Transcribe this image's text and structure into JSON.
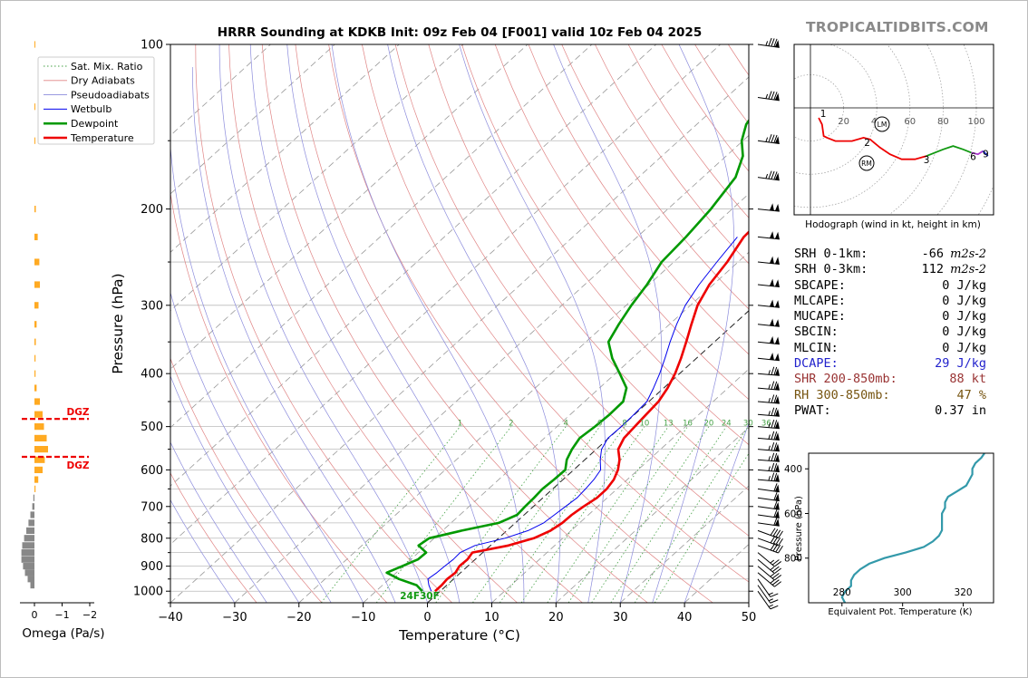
{
  "title": "HRRR Sounding at KDKB Init: 09z Feb 04 [F001] valid 10z Feb 04 2025",
  "brand": "TROPICALTIDBITS.COM",
  "chart_data": [
    {
      "type": "line",
      "name": "skew-t",
      "xlabel": "Temperature (°C)",
      "ylabel": "Pressure (hPa)",
      "xlim": [
        -40,
        50
      ],
      "ylim": [
        1050,
        100
      ],
      "y_scale": "log",
      "x_ticks": [
        -40,
        -30,
        -20,
        -10,
        0,
        10,
        20,
        30,
        40,
        50
      ],
      "x_tick_labels": [
        "−40",
        "−30",
        "−20",
        "−10",
        "0",
        "10",
        "20",
        "30",
        "40",
        "50"
      ],
      "y_ticks": [
        100,
        200,
        300,
        400,
        500,
        600,
        700,
        800,
        900,
        1000
      ],
      "legend_position": "top-left",
      "legend": [
        "Sat. Mix. Ratio",
        "Dry Adiabats",
        "Pseudoadiabats",
        "Wetbulb",
        "Dewpoint",
        "Temperature"
      ],
      "colors": {
        "temperature": "#ee0000",
        "dewpoint": "#009900",
        "wetbulb": "#0000ee",
        "dry_adiabat": "#e08585",
        "pseudoadiabat": "#8c8cdc",
        "mixing_ratio": "#44a044",
        "isotherm": "#000000"
      },
      "mixing_ratio_labels": [
        "1",
        "2",
        "4",
        "6",
        "8",
        "10",
        "13",
        "16",
        "20",
        "24",
        "30",
        "36"
      ],
      "surface_annotation": "24F30F",
      "series": [
        {
          "name": "Temperature",
          "points": [
            [
              1000,
              -0.8
            ],
            [
              975,
              -0.8
            ],
            [
              950,
              -1.0
            ],
            [
              925,
              -0.8
            ],
            [
              900,
              -1.3
            ],
            [
              875,
              -1.2
            ],
            [
              850,
              -1.6
            ],
            [
              825,
              2.8
            ],
            [
              800,
              5.5
            ],
            [
              775,
              6.8
            ],
            [
              750,
              7.3
            ],
            [
              725,
              7.4
            ],
            [
              700,
              7.8
            ],
            [
              675,
              8.4
            ],
            [
              650,
              8.4
            ],
            [
              625,
              7.9
            ],
            [
              600,
              6.9
            ],
            [
              575,
              5.4
            ],
            [
              550,
              3.4
            ],
            [
              525,
              2.4
            ],
            [
              500,
              2.1
            ],
            [
              475,
              1.8
            ],
            [
              450,
              1.5
            ],
            [
              425,
              0.6
            ],
            [
              400,
              -0.7
            ],
            [
              375,
              -2.4
            ],
            [
              350,
              -4.4
            ],
            [
              325,
              -6.6
            ],
            [
              300,
              -8.9
            ],
            [
              275,
              -10.6
            ],
            [
              250,
              -11.7
            ],
            [
              225,
              -13.4
            ],
            [
              200,
              -13.8
            ],
            [
              190,
              -12.4
            ],
            [
              175,
              -10.4
            ],
            [
              160,
              -8.0
            ],
            [
              150,
              -6.0
            ],
            [
              140,
              -5.0
            ],
            [
              130,
              -3.8
            ],
            [
              125,
              -3.2
            ],
            [
              110,
              -1.0
            ],
            [
              100,
              1.6
            ]
          ]
        },
        {
          "name": "Dewpoint",
          "points": [
            [
              1000,
              -2.8
            ],
            [
              975,
              -4.7
            ],
            [
              950,
              -8.5
            ],
            [
              925,
              -11.5
            ],
            [
              900,
              -10.2
            ],
            [
              875,
              -8.9
            ],
            [
              850,
              -8.8
            ],
            [
              825,
              -11.2
            ],
            [
              800,
              -10.8
            ],
            [
              775,
              -7.0
            ],
            [
              750,
              -2.6
            ],
            [
              725,
              -1.1
            ],
            [
              700,
              -1.3
            ],
            [
              675,
              -1.4
            ],
            [
              650,
              -1.6
            ],
            [
              625,
              -1.4
            ],
            [
              600,
              -1.3
            ],
            [
              575,
              -2.8
            ],
            [
              550,
              -3.8
            ],
            [
              525,
              -4.5
            ],
            [
              500,
              -4.1
            ],
            [
              475,
              -3.9
            ],
            [
              450,
              -4.0
            ],
            [
              425,
              -5.8
            ],
            [
              400,
              -9.3
            ],
            [
              375,
              -13.1
            ],
            [
              350,
              -16.5
            ],
            [
              325,
              -17.9
            ],
            [
              300,
              -19.2
            ],
            [
              275,
              -20.3
            ],
            [
              250,
              -21.9
            ],
            [
              225,
              -22.4
            ],
            [
              200,
              -23.3
            ],
            [
              175,
              -24.9
            ],
            [
              160,
              -27.4
            ],
            [
              150,
              -30.2
            ],
            [
              140,
              -32.3
            ],
            [
              130,
              -33.4
            ],
            [
              125,
              -32.9
            ],
            [
              110,
              -29.4
            ],
            [
              100,
              -24.6
            ]
          ]
        },
        {
          "name": "Wetbulb",
          "points": [
            [
              1000,
              -1.4
            ],
            [
              975,
              -2.8
            ],
            [
              950,
              -4.0
            ],
            [
              925,
              -3.7
            ],
            [
              900,
              -3.6
            ],
            [
              875,
              -3.4
            ],
            [
              850,
              -3.5
            ],
            [
              825,
              -2.4
            ],
            [
              800,
              1.0
            ],
            [
              775,
              3.3
            ],
            [
              750,
              4.4
            ],
            [
              725,
              4.7
            ],
            [
              700,
              5.0
            ],
            [
              675,
              5.3
            ],
            [
              650,
              5.1
            ],
            [
              625,
              4.8
            ],
            [
              600,
              4.2
            ],
            [
              575,
              2.4
            ],
            [
              550,
              0.8
            ],
            [
              525,
              -0.1
            ],
            [
              500,
              0.0
            ],
            [
              475,
              -0.1
            ],
            [
              450,
              -0.3
            ],
            [
              425,
              -1.6
            ],
            [
              400,
              -3.1
            ],
            [
              375,
              -4.9
            ],
            [
              350,
              -6.9
            ],
            [
              325,
              -8.9
            ],
            [
              300,
              -10.8
            ],
            [
              275,
              -12.2
            ],
            [
              250,
              -13.3
            ],
            [
              225,
              -14.4
            ]
          ]
        }
      ]
    },
    {
      "type": "bar",
      "name": "omega-profile",
      "xlabel": "Omega (Pa/s)",
      "x_tick_labels": [
        "0",
        "−1",
        "−2"
      ],
      "dgz_label": "DGZ",
      "dgz_levels_hpa": [
        484,
        568
      ],
      "colors": {
        "upward": "#ffaa22",
        "downward": "#888888",
        "dgz": "#ee0000"
      },
      "levels": [
        100,
        130,
        150,
        200,
        225,
        250,
        275,
        300,
        325,
        350,
        375,
        400,
        425,
        450,
        475,
        500,
        525,
        550,
        575,
        600,
        625,
        650,
        675,
        700,
        725,
        750,
        775,
        800,
        825,
        850,
        875,
        900,
        925,
        950,
        975
      ],
      "values": [
        0.02,
        0.02,
        0.02,
        0.05,
        0.12,
        0.18,
        0.2,
        0.15,
        0.08,
        0.05,
        0.04,
        0.04,
        0.08,
        0.2,
        0.3,
        0.35,
        0.45,
        0.5,
        0.38,
        0.3,
        0.14,
        0.04,
        -0.04,
        -0.08,
        -0.15,
        -0.22,
        -0.3,
        -0.38,
        -0.45,
        -0.48,
        -0.48,
        -0.42,
        -0.35,
        -0.25,
        -0.15
      ]
    },
    {
      "type": "line",
      "name": "hodograph",
      "caption": "Hodograph (wind in kt, height in km)",
      "ring_labels": [
        "20",
        "40",
        "60",
        "80",
        "100"
      ],
      "height_labels": [
        "1",
        "2",
        "3",
        "6",
        "9"
      ],
      "storm_motion_labels": [
        "LM",
        "RM"
      ],
      "colors": {
        "0-3km": "#ee0000",
        "3-6km": "#119911",
        "6-9km": "#aa33cc",
        "9km+": "#2233dd"
      },
      "points_kt": [
        [
          5,
          -6
        ],
        [
          7,
          -10
        ],
        [
          8,
          -17
        ],
        [
          10,
          -18
        ],
        [
          15,
          -20
        ],
        [
          25,
          -20
        ],
        [
          32,
          -18
        ],
        [
          36,
          -19
        ],
        [
          42,
          -24
        ],
        [
          48,
          -28
        ],
        [
          55,
          -31
        ],
        [
          63,
          -31
        ],
        [
          70,
          -29
        ],
        [
          80,
          -25
        ],
        [
          86,
          -23
        ],
        [
          92,
          -25
        ],
        [
          97,
          -27
        ],
        [
          101,
          -28
        ],
        [
          104,
          -26
        ],
        [
          107,
          -29
        ]
      ]
    },
    {
      "type": "line",
      "name": "theta-e-profile",
      "xlabel": "Equivalent Pot. Temperature (K)",
      "ylabel": "Pressure (hPa)",
      "x_ticks": [
        280,
        300,
        320
      ],
      "y_ticks": [
        400,
        600,
        800
      ],
      "xlim": [
        269,
        330
      ],
      "ylim": [
        1000,
        330
      ],
      "color": "#3399aa",
      "points": [
        [
          1000,
          281
        ],
        [
          975,
          280
        ],
        [
          950,
          281
        ],
        [
          925,
          283
        ],
        [
          900,
          283
        ],
        [
          875,
          284
        ],
        [
          850,
          286
        ],
        [
          825,
          289
        ],
        [
          800,
          294
        ],
        [
          775,
          301
        ],
        [
          750,
          307
        ],
        [
          725,
          310
        ],
        [
          700,
          312
        ],
        [
          675,
          313
        ],
        [
          650,
          313
        ],
        [
          625,
          313
        ],
        [
          600,
          313
        ],
        [
          575,
          314
        ],
        [
          550,
          314
        ],
        [
          525,
          315
        ],
        [
          500,
          318
        ],
        [
          475,
          321
        ],
        [
          450,
          322
        ],
        [
          425,
          323
        ],
        [
          400,
          323
        ],
        [
          375,
          324
        ],
        [
          350,
          326
        ],
        [
          330,
          327
        ]
      ]
    }
  ],
  "stats": [
    {
      "label": "SRH 0-1km:",
      "value": "-66",
      "unit": "m2s-2",
      "color": "#000000"
    },
    {
      "label": "SRH 0-3km:",
      "value": "112",
      "unit": "m2s-2",
      "color": "#000000"
    },
    {
      "label": "SBCAPE:",
      "value": "0 J/kg",
      "color": "#000000"
    },
    {
      "label": "MLCAPE:",
      "value": "0 J/kg",
      "color": "#000000"
    },
    {
      "label": "MUCAPE:",
      "value": "0 J/kg",
      "color": "#000000"
    },
    {
      "label": "SBCIN:",
      "value": "0 J/kg",
      "color": "#000000"
    },
    {
      "label": "MLCIN:",
      "value": "0 J/kg",
      "color": "#000000"
    },
    {
      "label": "DCAPE:",
      "value": "29 J/kg",
      "color": "#2222cc"
    },
    {
      "label": "SHR 200-850mb:",
      "value": "88 kt",
      "color": "#993333"
    },
    {
      "label": "RH 300-850mb:",
      "value": "47 %",
      "color": "#775511"
    },
    {
      "label": "PWAT:",
      "value": "0.37 in",
      "color": "#000000"
    }
  ]
}
